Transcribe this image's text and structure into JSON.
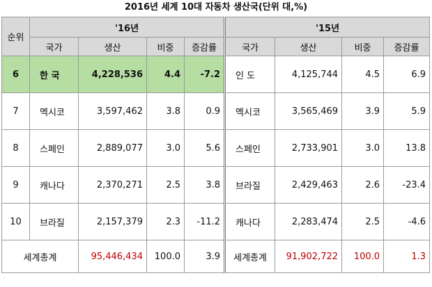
{
  "title": "2016년 세계 10대 자동차 생산국(단위 대,%)",
  "header": {
    "rank": "순위",
    "year_2016": "'16년",
    "year_2015": "'15년",
    "country": "국가",
    "production": "생산",
    "share": "비중",
    "growth": "증감률"
  },
  "rows": [
    {
      "rank": "6",
      "c16": "한 국",
      "p16": "4,228,536",
      "s16": "4.4",
      "g16": "-7.2",
      "c15": "인 도",
      "p15": "4,125,744",
      "s15": "4.5",
      "g15": "6.9"
    },
    {
      "rank": "7",
      "c16": "멕시코",
      "p16": "3,597,462",
      "s16": "3.8",
      "g16": "0.9",
      "c15": "멕시코",
      "p15": "3,565,469",
      "s15": "3.9",
      "g15": "5.9"
    },
    {
      "rank": "8",
      "c16": "스페인",
      "p16": "2,889,077",
      "s16": "3.0",
      "g16": "5.6",
      "c15": "스페인",
      "p15": "2,733,901",
      "s15": "3.0",
      "g15": "13.8"
    },
    {
      "rank": "9",
      "c16": "캐나다",
      "p16": "2,370,271",
      "s16": "2.5",
      "g16": "3.8",
      "c15": "브라질",
      "p15": "2,429,463",
      "s15": "2.6",
      "g15": "-23.4"
    },
    {
      "rank": "10",
      "c16": "브라질",
      "p16": "2,157,379",
      "s16": "2.3",
      "g16": "-11.2",
      "c15": "캐나다",
      "p15": "2,283,474",
      "s15": "2.5",
      "g15": "-4.6"
    }
  ],
  "total": {
    "label16": "세계총계",
    "p16": "95,446,434",
    "s16": "100.0",
    "g16": "3.9",
    "label15": "세계총계",
    "p15": "91,902,722",
    "s15": "100.0",
    "g15": "1.3"
  },
  "colors": {
    "highlight": "#b6dda2",
    "header": "#d9d9d9",
    "total_red": "#c00000"
  }
}
